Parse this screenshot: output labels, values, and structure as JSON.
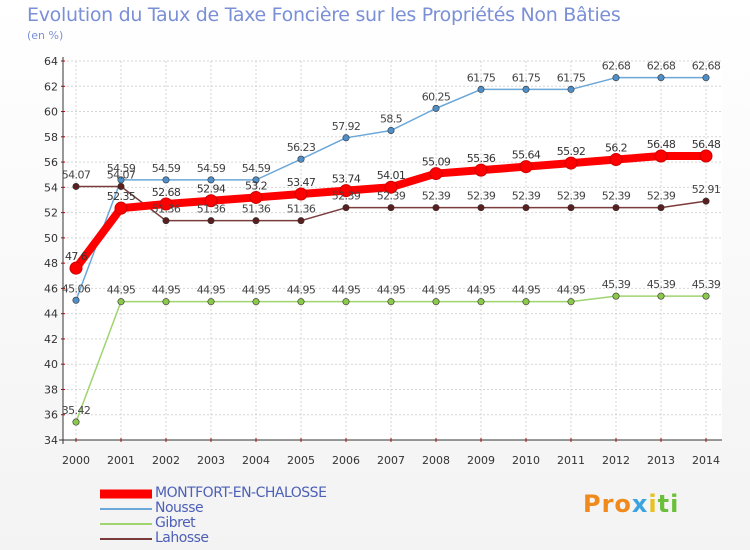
{
  "chart_data": {
    "type": "line",
    "title": "Evolution du Taux de Taxe Foncière sur les Propriétés Non Bâties",
    "ylabel": "(en %)",
    "xlabel": "",
    "x": [
      "2000",
      "2001",
      "2002",
      "2003",
      "2004",
      "2005",
      "2006",
      "2007",
      "2008",
      "2009",
      "2010",
      "2011",
      "2012",
      "2013",
      "2014"
    ],
    "ylim": [
      34,
      64
    ],
    "yticks": [
      "34",
      "36",
      "38",
      "40",
      "42",
      "44",
      "46",
      "48",
      "50",
      "52",
      "54",
      "56",
      "58",
      "60",
      "62",
      "64"
    ],
    "grid": true,
    "legend_position": "bottom-left",
    "series": [
      {
        "name": "Nousse",
        "color": "#6ba7d8",
        "point_color": "#4f8fc9",
        "label_color": "#444444",
        "values": [
          45.06,
          54.59,
          54.59,
          54.59,
          54.59,
          56.23,
          57.92,
          58.5,
          60.25,
          61.75,
          61.75,
          61.75,
          62.68,
          62.68,
          62.68
        ],
        "labels": [
          "45.06",
          "54.59",
          "54.59",
          "54.59",
          "54.59",
          "56.23",
          "57.92",
          "58.5",
          "60.25",
          "61.75",
          "61.75",
          "61.75",
          "62.68",
          "62.68",
          "62.68"
        ]
      },
      {
        "name": "Gibret",
        "color": "#9fd46f",
        "point_color": "#8cc84b",
        "label_color": "#444444",
        "values": [
          35.42,
          44.95,
          44.95,
          44.95,
          44.95,
          44.95,
          44.95,
          44.95,
          44.95,
          44.95,
          44.95,
          44.95,
          45.39,
          45.39,
          45.39
        ],
        "labels": [
          "35.42",
          "44.95",
          "44.95",
          "44.95",
          "44.95",
          "44.95",
          "44.95",
          "44.95",
          "44.95",
          "44.95",
          "44.95",
          "44.95",
          "45.39",
          "45.39",
          "45.39"
        ]
      },
      {
        "name": "Lahosse",
        "color": "#7a3b3b",
        "point_color": "#5a1f1f",
        "label_color": "#444444",
        "values": [
          54.07,
          54.07,
          51.36,
          51.36,
          51.36,
          51.36,
          52.39,
          52.39,
          52.39,
          52.39,
          52.39,
          52.39,
          52.39,
          52.39,
          52.91
        ],
        "labels": [
          "54.07",
          "54.07",
          "51.36",
          "51.36",
          "51.36",
          "51.36",
          "52.39",
          "52.39",
          "52.39",
          "52.39",
          "52.39",
          "52.39",
          "52.39",
          "52.39",
          "52.91"
        ]
      },
      {
        "name": "MONTFORT-EN-CHALOSSE",
        "color": "#ff0000",
        "point_color": "#ff0000",
        "label_color": "#333333",
        "values": [
          47.6,
          52.35,
          52.68,
          52.94,
          53.2,
          53.47,
          53.74,
          54.01,
          55.09,
          55.36,
          55.64,
          55.92,
          56.2,
          56.48,
          56.48
        ],
        "labels": [
          "47.6",
          "52.35",
          "52.68",
          "52.94",
          "53.2",
          "53.47",
          "53.74",
          "54.01",
          "55.09",
          "55.36",
          "55.64",
          "55.92",
          "56.2",
          "56.48",
          "56.48"
        ]
      }
    ]
  },
  "legend": {
    "items": [
      {
        "name": "MONTFORT-EN-CHALOSSE",
        "color": "#ff0000"
      },
      {
        "name": "Nousse",
        "color": "#6ba7d8"
      },
      {
        "name": "Gibret",
        "color": "#9fd46f"
      },
      {
        "name": "Lahosse",
        "color": "#7a3b3b"
      }
    ]
  },
  "logo": {
    "p1": "Pro",
    "p2": "x",
    "p3": "i",
    "p4": "ti"
  }
}
